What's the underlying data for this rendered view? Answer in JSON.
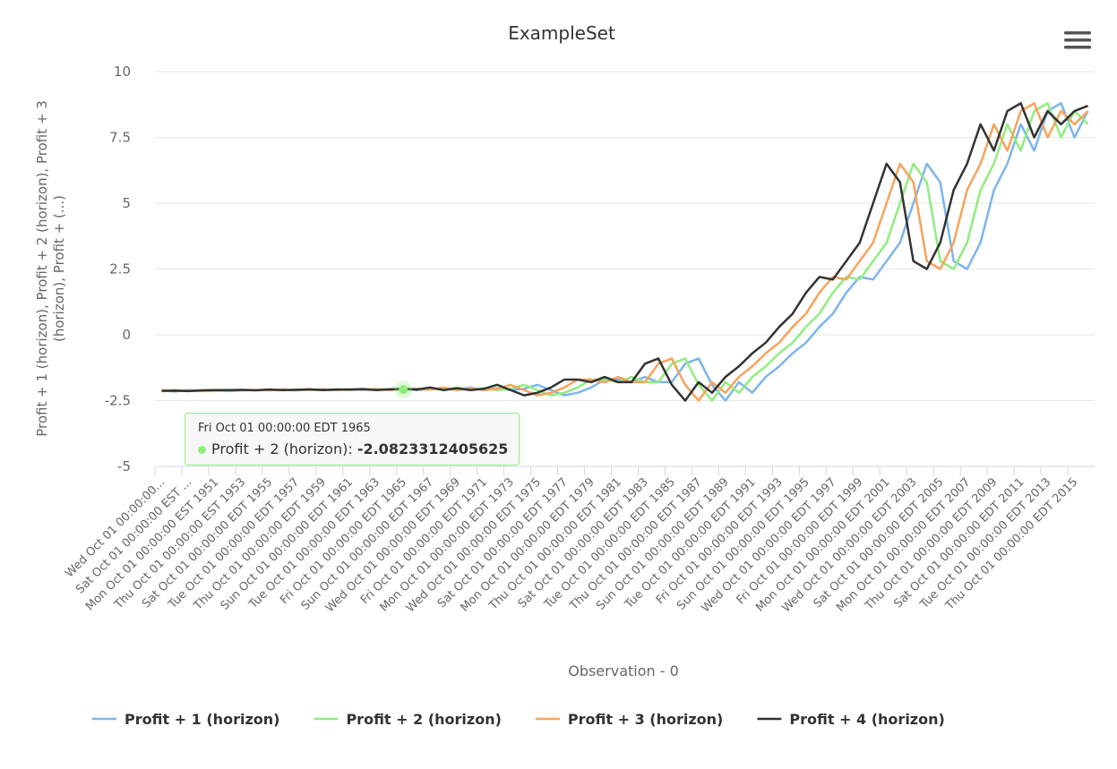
{
  "chart_data": {
    "type": "line",
    "title": "ExampleSet",
    "y_label": "Profit + 1 (horizon), Profit + 2 (horizon), Profit + 3 (horizon), Profit + (...)",
    "x_label": "Observation - 0",
    "ylim": [
      -5,
      10
    ],
    "yticks": [
      -5,
      -2.5,
      0,
      2.5,
      5,
      7.5,
      10
    ],
    "grid": true,
    "categories": [
      "Wed Oct 01 00:00:00...",
      null,
      "Sat Oct 01 00:00:00 EST ...",
      null,
      "Mon Oct 01 00:00:00 EST 1951",
      null,
      "Thu Oct 01 00:00:00 EST 1953",
      null,
      "Sat Oct 01 00:00:00 EDT 1955",
      null,
      "Tue Oct 01 00:00:00 EDT 1957",
      null,
      "Thu Oct 01 00:00:00 EDT 1959",
      null,
      "Sun Oct 01 00:00:00 EDT 1961",
      null,
      "Tue Oct 01 00:00:00 EDT 1963",
      null,
      "Fri Oct 01 00:00:00 EDT 1965",
      null,
      "Sun Oct 01 00:00:00 EDT 1967",
      null,
      "Wed Oct 01 00:00:00 EDT 1969",
      null,
      "Fri Oct 01 00:00:00 EDT 1971",
      null,
      "Mon Oct 01 00:00:00 EDT 1973",
      null,
      "Wed Oct 01 00:00:00 EDT 1975",
      null,
      "Sat Oct 01 00:00:00 EDT 1977",
      null,
      "Mon Oct 01 00:00:00 EDT 1979",
      null,
      "Thu Oct 01 00:00:00 EDT 1981",
      null,
      "Sat Oct 01 00:00:00 EDT 1983",
      null,
      "Tue Oct 01 00:00:00 EDT 1985",
      null,
      "Thu Oct 01 00:00:00 EDT 1987",
      null,
      "Sun Oct 01 00:00:00 EDT 1989",
      null,
      "Tue Oct 01 00:00:00 EDT 1991",
      null,
      "Fri Oct 01 00:00:00 EDT 1993",
      null,
      "Sun Oct 01 00:00:00 EDT 1995",
      null,
      "Wed Oct 01 00:00:00 EDT 1997",
      null,
      "Fri Oct 01 00:00:00 EDT 1999",
      null,
      "Mon Oct 01 00:00:00 EDT 2001",
      null,
      "Wed Oct 01 00:00:00 EDT 2003",
      null,
      "Sat Oct 01 00:00:00 EDT 2005",
      null,
      "Mon Oct 01 00:00:00 EDT 2007",
      null,
      "Thu Oct 01 00:00:00 EDT 2009",
      null,
      "Sat Oct 01 00:00:00 EDT 2011",
      null,
      "Tue Oct 01 00:00:00 EDT 2013",
      null,
      "Thu Oct 01 00:00:00 EDT 2015",
      null
    ],
    "series": [
      {
        "name": "Profit + 1 (horizon)",
        "color": "#7cb5ec",
        "values": [
          -2.12,
          -2.15,
          -2.1,
          -2.13,
          -2.12,
          -2.14,
          -2.11,
          -2.1,
          -2.1,
          -2.09,
          -2.11,
          -2.08,
          -2.1,
          -2.09,
          -2.07,
          -2.1,
          -2.08,
          -2.08,
          -2.06,
          -2.1,
          -2.07,
          -2.05,
          -2.08,
          -2.0,
          -2.1,
          -2.03,
          -2.1,
          -2.05,
          -1.9,
          -2.1,
          -2.3,
          -2.2,
          -2.0,
          -1.7,
          -1.7,
          -1.8,
          -1.6,
          -1.8,
          -1.8,
          -1.1,
          -0.9,
          -1.9,
          -2.5,
          -1.8,
          -2.2,
          -1.6,
          -1.2,
          -0.7,
          -0.3,
          0.3,
          0.8,
          1.6,
          2.2,
          2.1,
          2.8,
          3.5,
          5.0,
          6.5,
          5.8,
          2.8,
          2.5,
          3.5,
          5.5,
          6.5,
          8.0,
          7.0,
          8.5,
          8.8,
          7.5,
          8.5
        ]
      },
      {
        "name": "Profit + 2 (horizon)",
        "color": "#90ed7d",
        "values": [
          -2.15,
          -2.1,
          -2.13,
          -2.12,
          -2.14,
          -2.11,
          -2.1,
          -2.1,
          -2.09,
          -2.11,
          -2.08,
          -2.1,
          -2.09,
          -2.07,
          -2.1,
          -2.08,
          -2.08,
          -2.06,
          -2.0823312405625,
          -2.07,
          -2.05,
          -2.08,
          -2.0,
          -2.1,
          -2.03,
          -2.1,
          -2.05,
          -1.9,
          -2.1,
          -2.3,
          -2.2,
          -2.0,
          -1.7,
          -1.7,
          -1.8,
          -1.6,
          -1.8,
          -1.8,
          -1.1,
          -0.9,
          -1.9,
          -2.5,
          -1.8,
          -2.2,
          -1.6,
          -1.2,
          -0.7,
          -0.3,
          0.3,
          0.8,
          1.6,
          2.2,
          2.1,
          2.8,
          3.5,
          5.0,
          6.5,
          5.8,
          2.8,
          2.5,
          3.5,
          5.5,
          6.5,
          8.0,
          7.0,
          8.5,
          8.8,
          7.5,
          8.5,
          8.0
        ]
      },
      {
        "name": "Profit + 3 (horizon)",
        "color": "#f7a35c",
        "values": [
          -2.1,
          -2.13,
          -2.12,
          -2.14,
          -2.11,
          -2.1,
          -2.1,
          -2.09,
          -2.11,
          -2.08,
          -2.1,
          -2.09,
          -2.07,
          -2.1,
          -2.08,
          -2.08,
          -2.06,
          -2.1,
          -2.07,
          -2.05,
          -2.08,
          -2.0,
          -2.1,
          -2.03,
          -2.1,
          -2.05,
          -1.9,
          -2.1,
          -2.3,
          -2.2,
          -2.0,
          -1.7,
          -1.7,
          -1.8,
          -1.6,
          -1.8,
          -1.8,
          -1.1,
          -0.9,
          -1.9,
          -2.5,
          -1.8,
          -2.2,
          -1.6,
          -1.2,
          -0.7,
          -0.3,
          0.3,
          0.8,
          1.6,
          2.2,
          2.1,
          2.8,
          3.5,
          5.0,
          6.5,
          5.8,
          2.8,
          2.5,
          3.5,
          5.5,
          6.5,
          8.0,
          7.0,
          8.5,
          8.8,
          7.5,
          8.5,
          8.0,
          8.5
        ]
      },
      {
        "name": "Profit + 4 (horizon)",
        "color": "#333333",
        "values": [
          -2.13,
          -2.12,
          -2.14,
          -2.11,
          -2.1,
          -2.1,
          -2.09,
          -2.11,
          -2.08,
          -2.1,
          -2.09,
          -2.07,
          -2.1,
          -2.08,
          -2.08,
          -2.06,
          -2.1,
          -2.07,
          -2.05,
          -2.08,
          -2.0,
          -2.1,
          -2.03,
          -2.1,
          -2.05,
          -1.9,
          -2.1,
          -2.3,
          -2.2,
          -2.0,
          -1.7,
          -1.7,
          -1.8,
          -1.6,
          -1.8,
          -1.8,
          -1.1,
          -0.9,
          -1.9,
          -2.5,
          -1.8,
          -2.2,
          -1.6,
          -1.2,
          -0.7,
          -0.3,
          0.3,
          0.8,
          1.6,
          2.2,
          2.1,
          2.8,
          3.5,
          5.0,
          6.5,
          5.8,
          2.8,
          2.5,
          3.5,
          5.5,
          6.5,
          8.0,
          7.0,
          8.5,
          8.8,
          7.5,
          8.5,
          8.0,
          8.5,
          8.7
        ]
      }
    ],
    "tooltip": {
      "category_index": 18,
      "series_index": 1
    }
  }
}
